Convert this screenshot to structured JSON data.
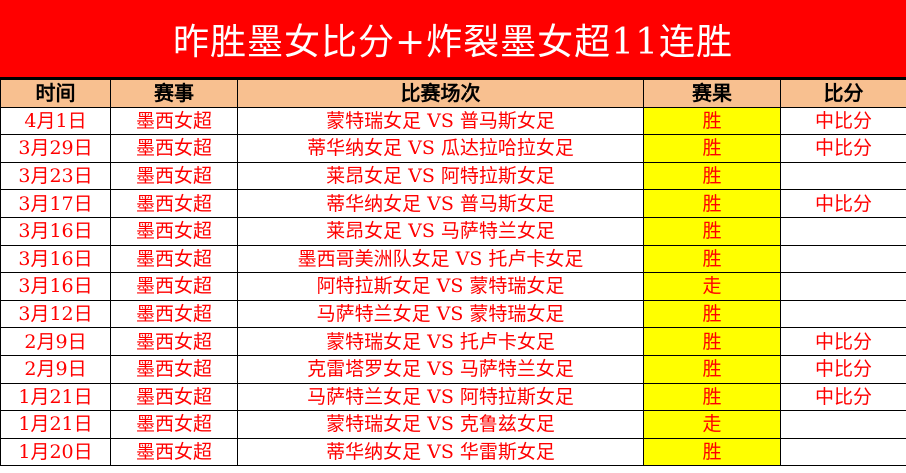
{
  "title": "昨胜墨女比分+炸裂墨女超11连胜",
  "colors": {
    "title_bg": "#ff0000",
    "header_bg": "#f8c090",
    "result_bg": "#ffff00",
    "text": "#ff0000"
  },
  "headers": [
    "时间",
    "赛事",
    "比赛场次",
    "赛果",
    "比分"
  ],
  "rows": [
    {
      "date": "4月1日",
      "league": "墨西女超",
      "match": "蒙特瑞女足 VS 普马斯女足",
      "result": "胜",
      "score": "中比分"
    },
    {
      "date": "3月29日",
      "league": "墨西女超",
      "match": "蒂华纳女足 VS 瓜达拉哈拉女足",
      "result": "胜",
      "score": "中比分"
    },
    {
      "date": "3月23日",
      "league": "墨西女超",
      "match": "莱昂女足 VS 阿特拉斯女足",
      "result": "胜",
      "score": ""
    },
    {
      "date": "3月17日",
      "league": "墨西女超",
      "match": "蒂华纳女足 VS 普马斯女足",
      "result": "胜",
      "score": "中比分"
    },
    {
      "date": "3月16日",
      "league": "墨西女超",
      "match": "莱昂女足 VS 马萨特兰女足",
      "result": "胜",
      "score": ""
    },
    {
      "date": "3月16日",
      "league": "墨西女超",
      "match": "墨西哥美洲队女足 VS 托卢卡女足",
      "result": "胜",
      "score": ""
    },
    {
      "date": "3月16日",
      "league": "墨西女超",
      "match": "阿特拉斯女足 VS 蒙特瑞女足",
      "result": "走",
      "score": ""
    },
    {
      "date": "3月12日",
      "league": "墨西女超",
      "match": "马萨特兰女足 VS 蒙特瑞女足",
      "result": "胜",
      "score": ""
    },
    {
      "date": "2月9日",
      "league": "墨西女超",
      "match": "蒙特瑞女足 VS 托卢卡女足",
      "result": "胜",
      "score": "中比分"
    },
    {
      "date": "2月9日",
      "league": "墨西女超",
      "match": "克雷塔罗女足 VS 马萨特兰女足",
      "result": "胜",
      "score": "中比分"
    },
    {
      "date": "1月21日",
      "league": "墨西女超",
      "match": "马萨特兰女足 VS 阿特拉斯女足",
      "result": "胜",
      "score": "中比分"
    },
    {
      "date": "1月21日",
      "league": "墨西女超",
      "match": "蒙特瑞女足 VS 克鲁兹女足",
      "result": "走",
      "score": ""
    },
    {
      "date": "1月20日",
      "league": "墨西女超",
      "match": "蒂华纳女足 VS 华雷斯女足",
      "result": "胜",
      "score": ""
    }
  ]
}
